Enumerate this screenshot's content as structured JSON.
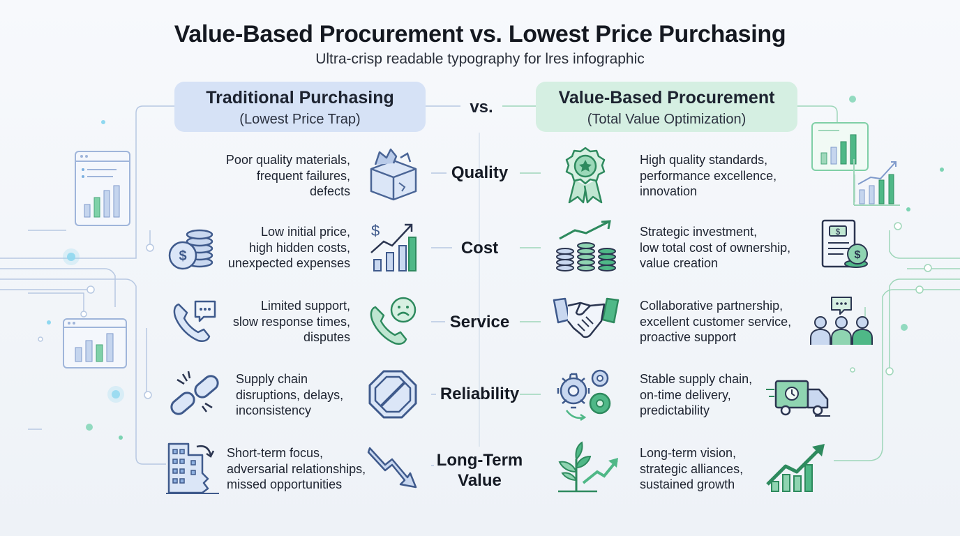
{
  "title": "Value-Based Procurement vs. Lowest Price Purchasing",
  "subtitle": "Ultra-crisp readable typography for lres infographic",
  "vs": "vs.",
  "left_header": {
    "title": "Traditional Purchasing",
    "subtitle": "(Lowest Price Trap)"
  },
  "right_header": {
    "title": "Value-Based Procurement",
    "subtitle": "(Total Value Optimization)"
  },
  "rows": [
    {
      "label": "Quality",
      "left": [
        "Poor quality materials,",
        "frequent failures,",
        "defects"
      ],
      "right": [
        "High quality standards,",
        "performance excellence,",
        "innovation"
      ]
    },
    {
      "label": "Cost",
      "left": [
        "Low initial price,",
        "high hidden costs,",
        "unexpected expenses"
      ],
      "right": [
        "Strategic investment,",
        "low total cost of ownership,",
        "value creation"
      ]
    },
    {
      "label": "Service",
      "left": [
        "Limited support,",
        "slow response times,",
        "disputes"
      ],
      "right": [
        "Collaborative partnership,",
        "excellent customer service,",
        "proactive support"
      ]
    },
    {
      "label": "Reliability",
      "left": [
        "Supply chain",
        "disruptions, delays,",
        "inconsistency"
      ],
      "right": [
        "Stable supply chain,",
        "on-time delivery,",
        "predictability"
      ]
    },
    {
      "label_lines": [
        "Long-Term",
        "Value"
      ],
      "left": [
        "Short-term focus,",
        "adversarial relationships,",
        "missed opportunities"
      ],
      "right": [
        "Long-term vision,",
        "strategic alliances,",
        "sustained growth"
      ]
    }
  ],
  "icons": {
    "quality_left": "broken-box-icon",
    "quality_right": "award-ribbon-icon",
    "cost_left_coins": "coin-stack-icon",
    "cost_left_chart": "rising-cost-chart-icon",
    "cost_right_chart": "coin-growth-icon",
    "cost_right_doc": "invoice-coins-icon",
    "service_left_phone": "phone-chat-icon",
    "service_left_sad": "phone-sad-icon",
    "service_right_handshake": "handshake-icon",
    "service_right_team": "team-chat-icon",
    "reliability_left_chain": "broken-chain-icon",
    "reliability_left_stop": "stop-sign-icon",
    "reliability_right_gears": "gears-icon",
    "reliability_right_truck": "delivery-truck-icon",
    "longterm_left_building": "crumbling-building-icon",
    "longterm_left_arrow": "down-arrow-icon",
    "longterm_right_plant": "growing-plant-icon",
    "longterm_right_chart": "growth-chart-icon",
    "deco_left_top": "dashboard-window-icon",
    "deco_left_bottom": "bar-chart-window-icon",
    "deco_right_top": "bar-chart-window-icon",
    "deco_right_mid": "rising-chart-icon"
  },
  "colors": {
    "left_accent": "#5a7fc4",
    "left_fill": "#d6e2f6",
    "right_accent": "#2f9e6b",
    "right_fill": "#d5efe2",
    "text": "#1d2330"
  }
}
